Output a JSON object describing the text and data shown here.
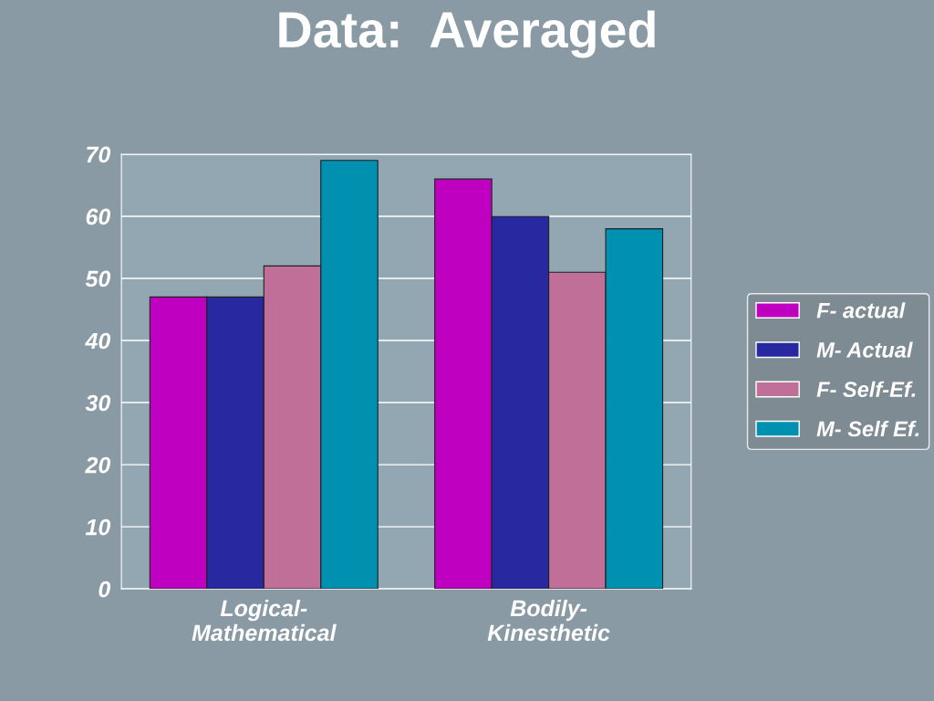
{
  "chart_data": {
    "type": "bar",
    "title": "Data:  Averaged",
    "categories": [
      "Logical-\nMathematical",
      "Bodily-\nKinesthetic"
    ],
    "series": [
      {
        "name": "F- actual",
        "color": "#c000c0",
        "values": [
          47,
          66
        ]
      },
      {
        "name": "M- Actual",
        "color": "#2828a0",
        "values": [
          47,
          60
        ]
      },
      {
        "name": "F- Self-Ef.",
        "color": "#c07098",
        "values": [
          52,
          51
        ]
      },
      {
        "name": "M- Self Ef.",
        "color": "#0090b0",
        "values": [
          69,
          58
        ]
      }
    ],
    "ylim": [
      0,
      70
    ],
    "yticks": [
      0,
      10,
      20,
      30,
      40,
      50,
      60,
      70
    ],
    "grid": "y",
    "legend": "right"
  }
}
